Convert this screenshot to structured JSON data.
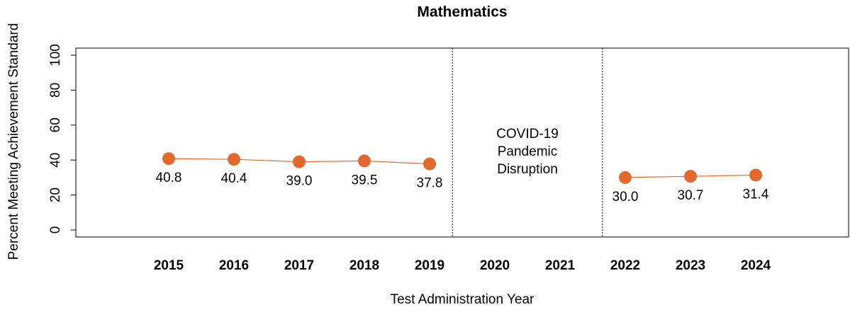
{
  "chart_data": {
    "type": "line",
    "title": "Mathematics",
    "x_label": "Test Administration Year",
    "y_label": "Percent Meeting Achievement Standard",
    "categories": [
      "2015",
      "2016",
      "2017",
      "2018",
      "2019",
      "2020",
      "2021",
      "2022",
      "2023",
      "2024"
    ],
    "series": [
      {
        "name": "Mathematics",
        "color": "#e2692d",
        "values": [
          40.8,
          40.4,
          39.0,
          39.5,
          37.8,
          null,
          null,
          30.0,
          30.7,
          31.4
        ],
        "value_labels": [
          "40.8",
          "40.4",
          "39.0",
          "39.5",
          "37.8",
          null,
          null,
          "30.0",
          "30.7",
          "31.4"
        ]
      }
    ],
    "ylim": [
      0,
      100
    ],
    "yticks": [
      0,
      20,
      40,
      60,
      80,
      100
    ],
    "annotation": [
      "COVID-19",
      "Pandemic",
      "Disruption"
    ]
  }
}
